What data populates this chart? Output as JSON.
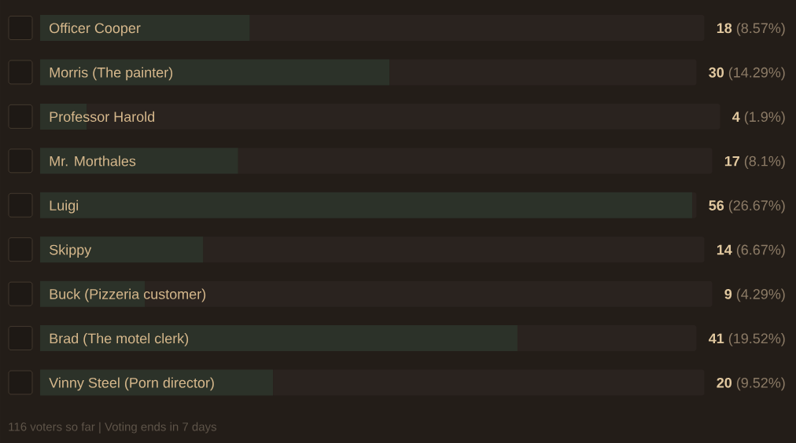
{
  "chart_data": {
    "type": "bar",
    "orientation": "horizontal",
    "categories": [
      "Officer Cooper",
      "Morris (The painter)",
      "Professor Harold",
      "Mr. Morthales",
      "Luigi",
      "Skippy",
      "Buck (Pizzeria customer)",
      "Brad (The motel clerk)",
      "Vinny Steel (Porn director)"
    ],
    "values": [
      18,
      30,
      4,
      17,
      56,
      14,
      9,
      41,
      20
    ],
    "color": "#2c3229",
    "value_labels": [
      "**18** (8.57%)",
      "**30** (14.29%)",
      "**4** (1.9%)",
      "**17** (8.1%)",
      "**56** (26.67%)",
      "**14** (6.67%)",
      "**9** (4.29%)",
      "**41** (19.52%)",
      "**20** (9.52%)"
    ],
    "annotations": [
      "116 voters so far | Voting ends in 7 days"
    ]
  }
}
